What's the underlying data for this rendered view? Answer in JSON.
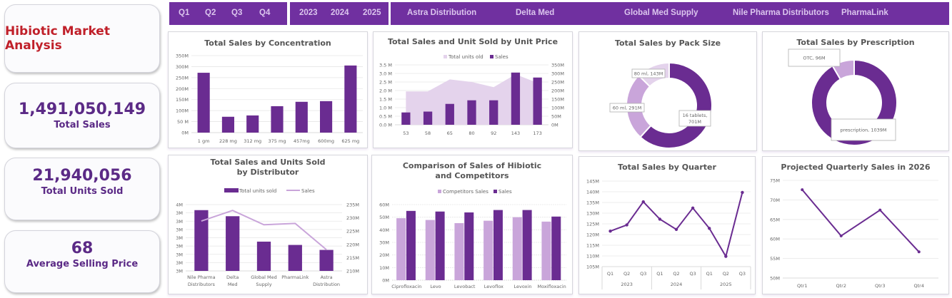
{
  "kpis": {
    "title": "Hibiotic Market Analysis",
    "total_sales": {
      "value": "1,491,050,149",
      "label": "Total Sales"
    },
    "total_units": {
      "value": "21,940,056",
      "label": "Total Units Sold"
    },
    "avg_price": {
      "value": "68",
      "label": "Average Selling Price"
    }
  },
  "slicers": {
    "quarters": [
      "Q1",
      "Q2",
      "Q3",
      "Q4"
    ],
    "years": [
      "2023",
      "2024",
      "2025"
    ],
    "distributors": [
      "Astra Distribution",
      "Delta Med",
      "Global Med Supply",
      "Nile Pharma Distributors",
      "PharmaLink"
    ]
  },
  "colors": {
    "primary": "#6a2c91",
    "light": "#c9a5da",
    "lighter": "#e4d3ec",
    "slicer": "#7030a0",
    "title_red": "#c0202a"
  },
  "chart_data": [
    {
      "id": "concentration",
      "type": "bar",
      "title": "Total Sales by Concentration",
      "categories": [
        "1 gm",
        "228 mg",
        "312 mg",
        "375 mg",
        "457mg",
        "600mg",
        "625 mg"
      ],
      "values": [
        272,
        72,
        78,
        120,
        140,
        143,
        305
      ],
      "ylim": [
        0,
        350
      ],
      "yticks": [
        "0M",
        "50 M",
        "100M",
        "150M",
        "200M",
        "250M",
        "300M",
        "350M"
      ],
      "unit": "M"
    },
    {
      "id": "unit_price",
      "type": "bar+area",
      "title": "Total Sales and Unit Sold by Unit Price",
      "categories": [
        "53",
        "58",
        "65",
        "80",
        "92",
        "143",
        "173"
      ],
      "series": [
        {
          "name": "Total units old",
          "type": "area",
          "axis": "left",
          "values": [
            1.95,
            1.95,
            2.65,
            2.5,
            2.2,
            2.95,
            2.45
          ]
        },
        {
          "name": "Sales",
          "type": "bar",
          "axis": "right",
          "values": [
            72,
            77,
            122,
            143,
            143,
            305,
            276
          ]
        }
      ],
      "yleft": {
        "lim": [
          0,
          3.5
        ],
        "ticks": [
          "0.0 M",
          "0.5 M",
          "1.0 M",
          "1.5 M",
          "2.0 M",
          "2.5 M",
          "3.0 M",
          "3.5 M"
        ]
      },
      "yright": {
        "lim": [
          0,
          350
        ],
        "ticks": [
          "0M",
          "50M",
          "100M",
          "150M",
          "200M",
          "250M",
          "300M",
          "350M"
        ]
      }
    },
    {
      "id": "pack_size",
      "type": "pie",
      "title": "Total Sales by Pack Size",
      "slices": [
        {
          "label": "16 tablets",
          "value": 701,
          "text": "16 tablets, 701M"
        },
        {
          "label": "60 ml",
          "value": 291,
          "text": "60 ml, 291M"
        },
        {
          "label": "80 ml",
          "value": 143,
          "text": "80 ml, 143M"
        }
      ]
    },
    {
      "id": "prescription",
      "type": "pie",
      "title": "Total Sales by Prescription",
      "slices": [
        {
          "label": "prescription",
          "value": 1039,
          "text": "prescription, 1039M"
        },
        {
          "label": "OTC",
          "value": 96,
          "text": "OTC, 96M"
        }
      ]
    },
    {
      "id": "distributor",
      "type": "bar+line",
      "title": "Total Sales and Units Sold by Distributor",
      "categories": [
        "Nile Pharma Distributors",
        "Delta Med",
        "Global Med Supply",
        "PharmaLink",
        "Astra Distribution"
      ],
      "series": [
        {
          "name": "Total units sold",
          "type": "bar",
          "axis": "left",
          "values": [
            3.9,
            3.79,
            3.33,
            3.27,
            3.18
          ]
        },
        {
          "name": "Sales",
          "type": "line",
          "axis": "right",
          "values": [
            228.8,
            232.8,
            227.4,
            227.9,
            218.0
          ]
        }
      ],
      "yleft": {
        "lim": [
          2.8,
          4.0
        ],
        "ticks": [
          "3M",
          "3M",
          "3M",
          "3M",
          "3M",
          "3M",
          "3M",
          "3M",
          "4M"
        ]
      },
      "yright": {
        "lim": [
          210,
          235
        ],
        "ticks": [
          "210M",
          "215M",
          "220M",
          "225M",
          "230M",
          "235M"
        ]
      }
    },
    {
      "id": "competitors",
      "type": "bar",
      "title": "Comparison of Sales of Hibiotic and Competitors",
      "categories": [
        "Ciprofloxacin",
        "Levo",
        "Levobact",
        "Levoflox",
        "Levoxin",
        "Moxifloxacin"
      ],
      "series": [
        {
          "name": "Competitors Sales",
          "values": [
            49.2,
            47.8,
            45.3,
            47.2,
            50.0,
            46.5
          ]
        },
        {
          "name": "Sales",
          "values": [
            55.0,
            54.5,
            53.8,
            55.7,
            55.7,
            50.5
          ]
        }
      ],
      "ylim": [
        0,
        60
      ],
      "yticks": [
        "0M",
        "10M",
        "20M",
        "30M",
        "40M",
        "50M",
        "60M"
      ]
    },
    {
      "id": "quarter",
      "type": "line",
      "title": "Total Sales by Quarter",
      "categories": [
        "Q1",
        "Q2",
        "Q3",
        "Q1",
        "Q2",
        "Q3",
        "Q1",
        "Q2",
        "Q3"
      ],
      "groups": [
        "2023",
        "2024",
        "2025"
      ],
      "values": [
        121.6,
        124.5,
        135.3,
        127.2,
        122.4,
        132.4,
        122.9,
        109.8,
        139.7
      ],
      "ylim": [
        105,
        145
      ],
      "yticks": [
        "105M",
        "110M",
        "115M",
        "120M",
        "125M",
        "130M",
        "135M",
        "140M",
        "145M"
      ]
    },
    {
      "id": "projected",
      "type": "line",
      "title": "Projected Quarterly Sales in 2026",
      "categories": [
        "Qtr1",
        "Qtr2",
        "Qtr3",
        "Qtr4"
      ],
      "values": [
        72.6,
        60.8,
        67.4,
        56.7
      ],
      "ylim": [
        50,
        75
      ],
      "yticks": [
        "50M",
        "55M",
        "60M",
        "65M",
        "70M",
        "75M"
      ]
    }
  ]
}
